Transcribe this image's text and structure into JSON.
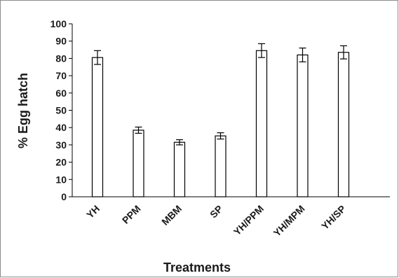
{
  "chart_data": {
    "type": "bar",
    "categories": [
      "YH",
      "PPM",
      "MBM",
      "SP",
      "YH/PPM",
      "YH/MPM",
      "YH/SP"
    ],
    "values": [
      80.5,
      38.5,
      31.5,
      35.2,
      84.5,
      82.0,
      83.5
    ],
    "errors": [
      4.0,
      1.8,
      1.5,
      1.8,
      4.0,
      4.0,
      3.8
    ],
    "xlabel": "Treatments",
    "ylabel": "% Egg hatch",
    "ylim": [
      0,
      100
    ],
    "yticks": [
      0,
      10,
      20,
      30,
      40,
      50,
      60,
      70,
      80,
      90,
      100
    ],
    "grid": false,
    "bar_fill": "#ffffff",
    "bar_stroke": "#000000"
  }
}
